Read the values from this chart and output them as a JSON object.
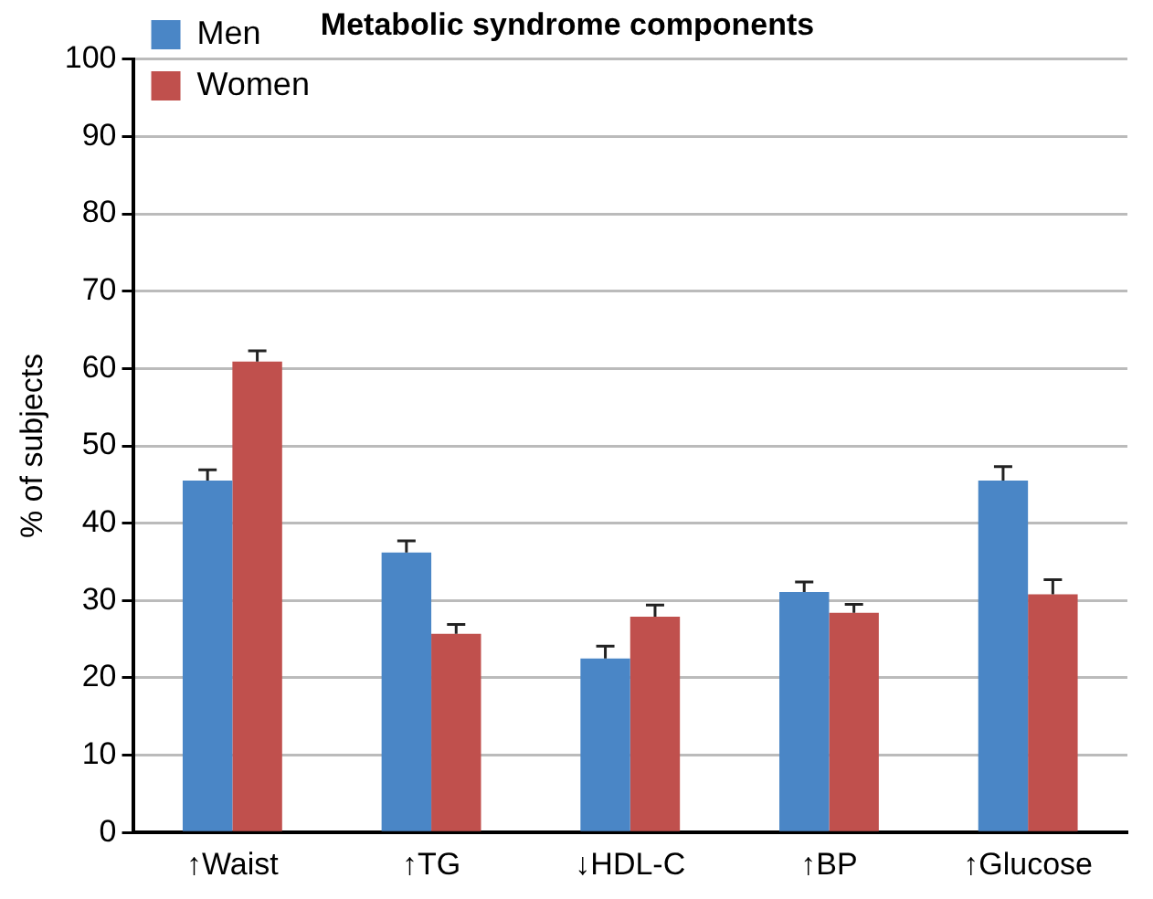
{
  "chart_data": {
    "type": "bar",
    "title": "Metabolic syndrome components",
    "ylabel": "% of subjects",
    "categories": [
      "↑Waist",
      "↑TG",
      "↓HDL-C",
      "↑BP",
      "↑Glucose"
    ],
    "series": [
      {
        "name": "Men",
        "color": "#4a86c6",
        "values": [
          45.5,
          36.2,
          22.5,
          31.1,
          45.5
        ],
        "errors": [
          [
            45.5,
            46.9
          ],
          [
            36.2,
            37.7
          ],
          [
            22.5,
            24.1
          ],
          [
            31.1,
            32.4
          ],
          [
            45.5,
            47.3
          ]
        ]
      },
      {
        "name": "Women",
        "color": "#c0504d",
        "values": [
          60.9,
          25.7,
          27.9,
          28.4,
          30.8
        ],
        "errors": [
          [
            60.9,
            62.3
          ],
          [
            25.7,
            26.9
          ],
          [
            27.9,
            29.4
          ],
          [
            28.4,
            29.5
          ],
          [
            30.8,
            32.7
          ]
        ]
      }
    ],
    "ylim": [
      0,
      100
    ],
    "yticks": [
      0,
      10,
      20,
      30,
      40,
      50,
      60,
      70,
      80,
      90,
      100
    ],
    "grid": "y",
    "legend": "top left"
  }
}
